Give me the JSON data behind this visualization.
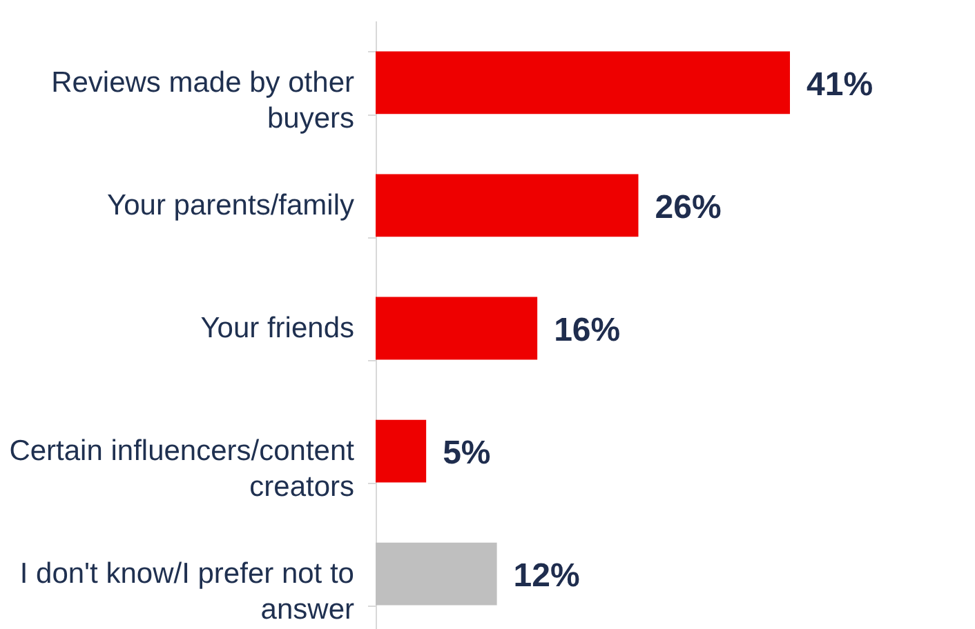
{
  "chart_data": {
    "type": "bar",
    "orientation": "horizontal",
    "categories": [
      "Reviews made by other buyers",
      "Your parents/family",
      "Your friends",
      "Certain influencers/content creators",
      "I don't know/I prefer not to answer"
    ],
    "values": [
      41,
      26,
      16,
      5,
      12
    ],
    "colors": [
      "#ee0000",
      "#ee0000",
      "#ee0000",
      "#ee0000",
      "#bfbfbf"
    ],
    "value_labels": [
      "41%",
      "26%",
      "16%",
      "5%",
      "12%"
    ]
  }
}
